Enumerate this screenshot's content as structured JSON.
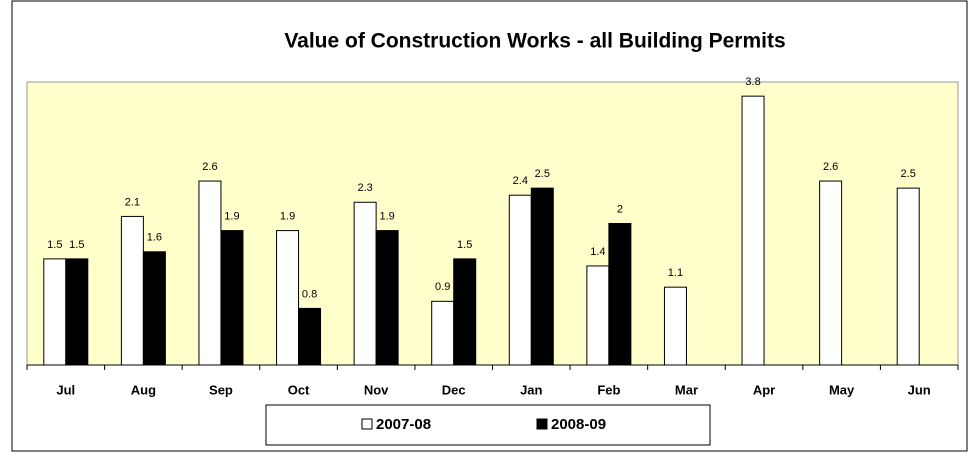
{
  "chart_data": {
    "type": "bar",
    "title": "Value of Construction Works - all Building Permits",
    "categories": [
      "Jul",
      "Aug",
      "Sep",
      "Oct",
      "Nov",
      "Dec",
      "Jan",
      "Feb",
      "Mar",
      "Apr",
      "May",
      "Jun"
    ],
    "series": [
      {
        "name": "2007-08",
        "color": "#ffffff",
        "values": [
          1.5,
          2.1,
          2.6,
          1.9,
          2.3,
          0.9,
          2.4,
          1.4,
          1.1,
          3.8,
          2.6,
          2.5
        ]
      },
      {
        "name": "2008-09",
        "color": "#000000",
        "values": [
          1.5,
          1.6,
          1.9,
          0.8,
          1.9,
          1.5,
          2.5,
          2,
          null,
          null,
          null,
          null
        ]
      }
    ],
    "ylim": [
      0,
      4
    ],
    "legend": "bottom"
  }
}
